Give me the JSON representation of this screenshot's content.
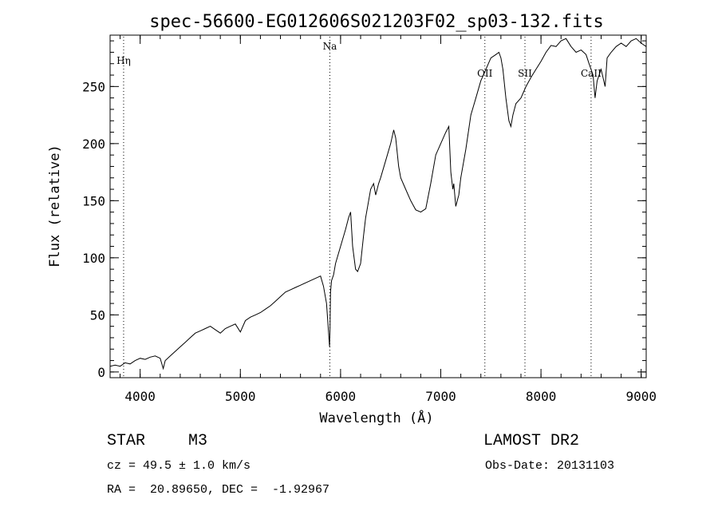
{
  "chart_data": {
    "type": "line",
    "title": "spec-56600-EG012606S021203F02_sp03-132.fits",
    "xlabel": "Wavelength (Å)",
    "ylabel": "Flux (relative)",
    "xlim": [
      3700,
      9050
    ],
    "ylim": [
      -5,
      295
    ],
    "x_ticks": [
      4000,
      5000,
      6000,
      7000,
      8000,
      9000
    ],
    "x_minor_step": 200,
    "y_ticks": [
      0,
      50,
      100,
      150,
      200,
      250
    ],
    "y_minor_step": 10,
    "grid": false,
    "series": [
      {
        "x": [
          3700,
          3750,
          3800,
          3850,
          3900,
          3950,
          4000,
          4050,
          4100,
          4150,
          4200,
          4230,
          4250,
          4300,
          4350,
          4400,
          4450,
          4500,
          4550,
          4600,
          4650,
          4700,
          4750,
          4800,
          4850,
          4900,
          4950,
          5000,
          5050,
          5100,
          5150,
          5200,
          5250,
          5300,
          5350,
          5400,
          5450,
          5500,
          5550,
          5600,
          5650,
          5700,
          5750,
          5800,
          5830,
          5860,
          5880,
          5890,
          5895,
          5900,
          5910,
          5930,
          5950,
          6000,
          6050,
          6080,
          6100,
          6120,
          6150,
          6170,
          6200,
          6230,
          6250,
          6280,
          6300,
          6330,
          6350,
          6380,
          6400,
          6450,
          6500,
          6530,
          6550,
          6580,
          6600,
          6650,
          6700,
          6750,
          6800,
          6850,
          6900,
          6950,
          7000,
          7050,
          7080,
          7100,
          7120,
          7130,
          7150,
          7180,
          7200,
          7250,
          7300,
          7350,
          7400,
          7450,
          7500,
          7550,
          7580,
          7600,
          7620,
          7650,
          7680,
          7700,
          7720,
          7750,
          7800,
          7850,
          7900,
          7950,
          8000,
          8050,
          8100,
          8150,
          8200,
          8250,
          8300,
          8350,
          8400,
          8450,
          8480,
          8500,
          8520,
          8540,
          8560,
          8600,
          8640,
          8660,
          8700,
          8750,
          8800,
          8850,
          8900,
          8950,
          9000,
          9050
        ],
        "y": [
          5,
          6,
          5,
          8,
          7,
          10,
          12,
          11,
          13,
          14,
          12,
          3,
          10,
          14,
          18,
          22,
          26,
          30,
          34,
          36,
          38,
          40,
          37,
          34,
          38,
          40,
          42,
          35,
          45,
          48,
          50,
          52,
          55,
          58,
          62,
          66,
          70,
          72,
          74,
          76,
          78,
          80,
          82,
          84,
          75,
          60,
          35,
          22,
          40,
          70,
          80,
          85,
          95,
          110,
          125,
          135,
          140,
          110,
          90,
          88,
          95,
          120,
          135,
          150,
          160,
          165,
          155,
          165,
          170,
          185,
          200,
          212,
          205,
          180,
          170,
          160,
          150,
          142,
          140,
          143,
          165,
          190,
          200,
          210,
          215,
          175,
          160,
          165,
          145,
          155,
          170,
          195,
          225,
          240,
          255,
          265,
          275,
          278,
          280,
          275,
          265,
          240,
          220,
          215,
          225,
          235,
          240,
          250,
          258,
          265,
          272,
          280,
          286,
          285,
          290,
          292,
          285,
          280,
          282,
          278,
          270,
          265,
          260,
          240,
          255,
          265,
          250,
          275,
          280,
          285,
          288,
          285,
          290,
          292,
          288,
          285
        ]
      }
    ],
    "annotations": [
      {
        "label": "Hη",
        "x": 3835
      },
      {
        "label": "Na",
        "x": 5893
      },
      {
        "label": "OII",
        "x": 7440
      },
      {
        "label": "SII",
        "x": 7840
      },
      {
        "label": "CaII",
        "x": 8500
      }
    ]
  },
  "info": {
    "object_class": "STAR",
    "subclass": "M3",
    "survey": "LAMOST DR2",
    "cz": "cz = 49.5 ± 1.0 km/s",
    "obs_date": "Obs-Date: 20131103",
    "coords": "RA =  20.89650, DEC =  -1.92967"
  }
}
